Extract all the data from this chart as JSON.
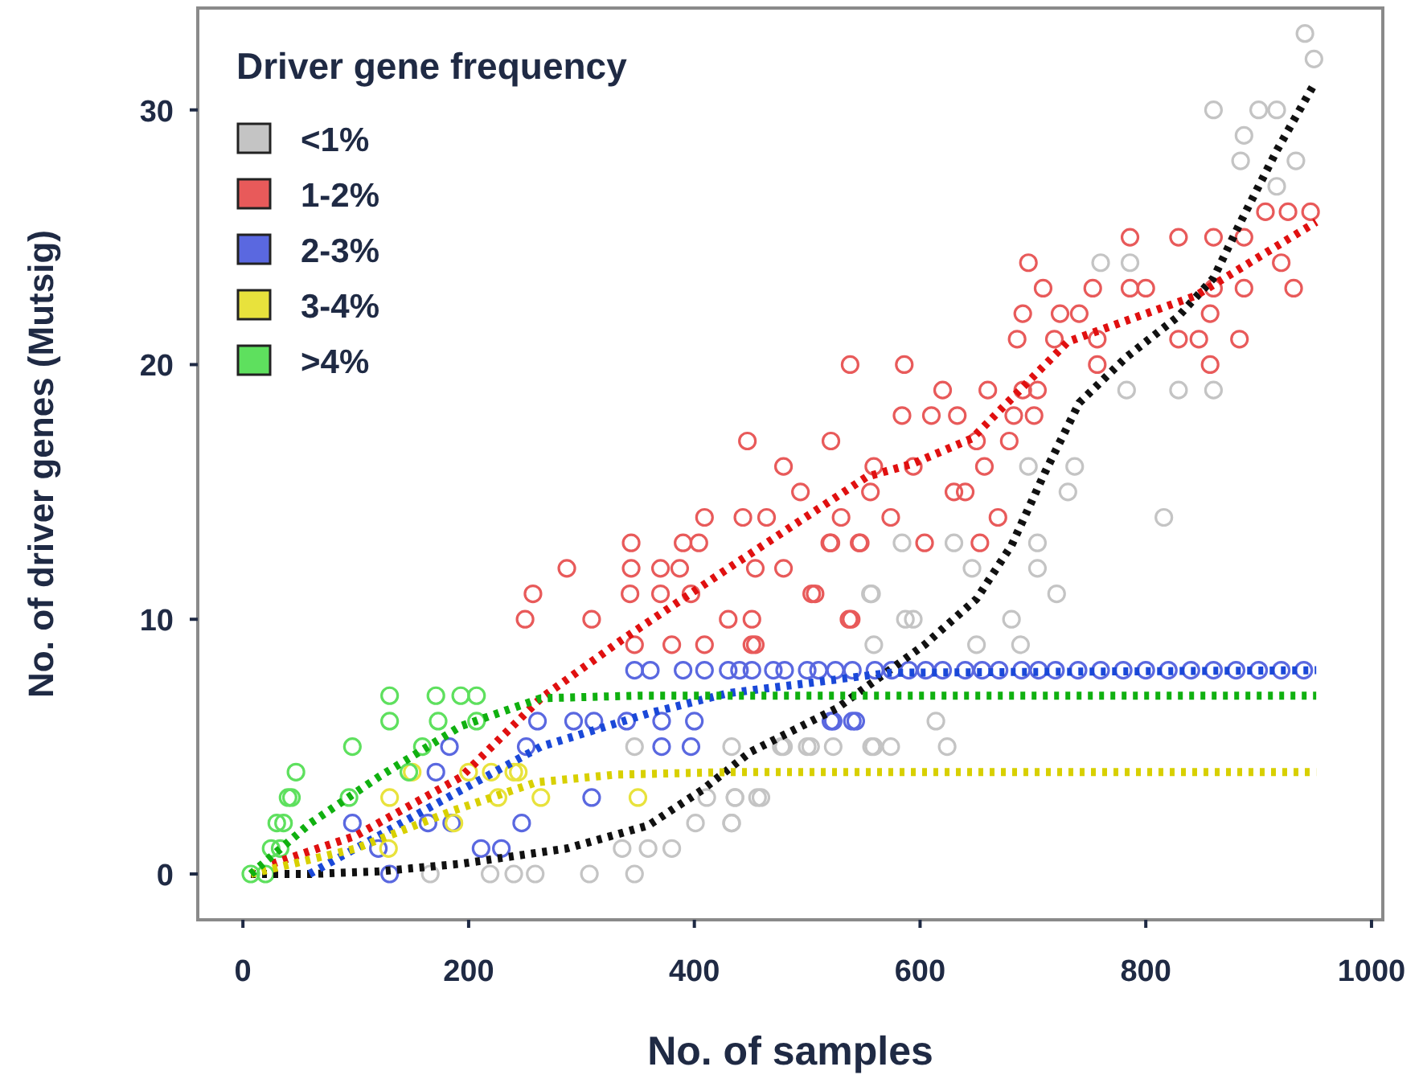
{
  "chart_data": {
    "type": "scatter",
    "xlabel": "No. of samples",
    "ylabel": "No. of driver genes (Mutsig)",
    "legend_title": "Driver gene frequency",
    "legend": "top left",
    "marker": "circle",
    "line_style": "dotted",
    "xlim": [
      -40,
      1010
    ],
    "ylim": [
      -1.8,
      34
    ],
    "xticks": [
      0,
      200,
      400,
      600,
      800,
      1000
    ],
    "yticks": [
      0,
      10,
      20,
      30
    ],
    "series": [
      {
        "name": "<1%",
        "color": "#c4c4c4",
        "x": [
          941,
          949,
          860,
          900,
          916,
          887,
          884,
          933,
          916,
          760,
          786,
          783,
          829,
          860,
          816,
          696,
          737,
          731,
          704,
          584,
          630,
          646,
          704,
          556,
          721,
          594,
          681,
          559,
          650,
          689,
          614,
          477,
          503,
          523,
          559,
          574,
          624,
          436,
          456,
          433,
          347,
          433,
          479,
          500,
          557,
          401,
          433,
          411,
          436,
          459,
          336,
          359,
          380,
          307,
          347,
          166,
          219,
          240,
          259,
          587,
          557
        ],
        "values": [
          33,
          32,
          30,
          30,
          30,
          29,
          28,
          28,
          27,
          24,
          24,
          19,
          19,
          19,
          14,
          16,
          16,
          15,
          13,
          13,
          13,
          12,
          12,
          11,
          11,
          10,
          10,
          9,
          9,
          9,
          6,
          5,
          5,
          5,
          5,
          5,
          5,
          3,
          3,
          2,
          5,
          5,
          5,
          5,
          5,
          2,
          2,
          3,
          3,
          3,
          1,
          1,
          1,
          0,
          0,
          0,
          0,
          0,
          0,
          10,
          11
        ]
      },
      {
        "name": "1-2%",
        "color": "#e85a5a",
        "x": [
          447,
          521,
          479,
          494,
          409,
          443,
          464,
          344,
          390,
          404,
          521,
          547,
          287,
          344,
          370,
          387,
          454,
          479,
          257,
          343,
          370,
          397,
          507,
          250,
          309,
          430,
          451,
          537,
          347,
          380,
          409,
          451,
          538,
          586,
          620,
          660,
          691,
          704,
          584,
          610,
          633,
          683,
          701,
          650,
          679,
          559,
          594,
          657,
          556,
          630,
          640,
          530,
          574,
          669,
          520,
          546,
          604,
          653,
          504,
          539,
          454,
          696,
          709,
          753,
          786,
          786,
          800,
          829,
          860,
          887,
          691,
          724,
          741,
          686,
          719,
          757,
          829,
          847,
          883,
          757,
          857,
          857,
          860,
          887,
          931,
          920,
          906,
          926,
          946
        ],
        "values": [
          17,
          17,
          16,
          15,
          14,
          14,
          14,
          13,
          13,
          13,
          13,
          13,
          12,
          12,
          12,
          12,
          12,
          12,
          11,
          11,
          11,
          11,
          11,
          10,
          10,
          10,
          10,
          10,
          9,
          9,
          9,
          9,
          20,
          20,
          19,
          19,
          19,
          19,
          18,
          18,
          18,
          18,
          18,
          17,
          17,
          16,
          16,
          16,
          15,
          15,
          15,
          14,
          14,
          14,
          13,
          13,
          13,
          13,
          11,
          10,
          9,
          24,
          23,
          23,
          25,
          23,
          23,
          25,
          25,
          25,
          22,
          22,
          22,
          21,
          21,
          21,
          21,
          21,
          21,
          20,
          20,
          22,
          23,
          23,
          23,
          24,
          26,
          26,
          26
        ]
      },
      {
        "name": "2-3%",
        "color": "#5a68e0",
        "x": [
          347,
          361,
          390,
          409,
          430,
          440,
          451,
          470,
          480,
          500,
          510,
          525,
          540,
          560,
          575,
          590,
          605,
          620,
          640,
          655,
          670,
          690,
          705,
          720,
          740,
          760,
          780,
          800,
          820,
          840,
          860,
          880,
          900,
          920,
          940,
          183,
          261,
          251,
          185,
          97,
          164,
          120,
          211,
          229,
          247,
          309,
          371,
          371,
          397,
          400,
          293,
          311,
          340,
          521,
          543,
          523,
          540,
          171,
          130
        ],
        "values": [
          8,
          8,
          8,
          8,
          8,
          8,
          8,
          8,
          8,
          8,
          8,
          8,
          8,
          8,
          8,
          8,
          8,
          8,
          8,
          8,
          8,
          8,
          8,
          8,
          8,
          8,
          8,
          8,
          8,
          8,
          8,
          8,
          8,
          8,
          8,
          5,
          6,
          5,
          2,
          2,
          2,
          1,
          1,
          1,
          2,
          3,
          6,
          5,
          5,
          6,
          6,
          6,
          6,
          6,
          6,
          6,
          6,
          4,
          0
        ]
      },
      {
        "name": "3-4%",
        "color": "#e8e23c",
        "x": [
          130,
          264,
          226,
          350,
          187,
          129,
          150,
          244,
          200,
          220,
          240
        ],
        "values": [
          3,
          3,
          3,
          3,
          2,
          1,
          4,
          4,
          4,
          4,
          4
        ]
      },
      {
        "name": ">4%",
        "color": "#5ee05e",
        "x": [
          47,
          43,
          36,
          33,
          7,
          130,
          171,
          193,
          207,
          130,
          173,
          207,
          97,
          159,
          94,
          147,
          20,
          25,
          30,
          40
        ],
        "values": [
          4,
          3,
          2,
          1,
          0,
          7,
          7,
          7,
          7,
          6,
          6,
          6,
          5,
          5,
          3,
          4,
          0,
          1,
          2,
          3
        ]
      },
      {
        "type": "line",
        "marker": "none",
        "color": "#111111",
        "x": [
          7,
          60,
          120,
          193,
          287,
          359,
          407,
          450,
          526,
          604,
          650,
          681,
          711,
          741,
          783,
          829,
          860,
          884,
          916,
          949
        ],
        "values": [
          0,
          0,
          0.1,
          0.4,
          1,
          1.9,
          3.3,
          4.8,
          6.5,
          9,
          10.8,
          12.9,
          15.8,
          18.5,
          20.3,
          21.9,
          23.4,
          25.6,
          28.4,
          31
        ]
      },
      {
        "type": "line",
        "marker": "none",
        "color": "#e01010",
        "x": [
          26,
          100,
          193,
          264,
          336,
          430,
          553,
          593,
          646,
          731,
          844,
          951
        ],
        "values": [
          0.4,
          1.5,
          3.8,
          6.9,
          9.2,
          12,
          15.6,
          16.1,
          17.1,
          20.9,
          22.7,
          25.6
        ]
      },
      {
        "type": "line",
        "marker": "none",
        "color": "#1a48d8",
        "x": [
          59,
          169,
          264,
          359,
          430,
          573,
          951
        ],
        "values": [
          0,
          2.7,
          5,
          6.3,
          7.1,
          7.9,
          8
        ]
      },
      {
        "type": "line",
        "marker": "none",
        "color": "#d8d000",
        "x": [
          7,
          100,
          187,
          260,
          330,
          430,
          951
        ],
        "values": [
          0,
          1,
          2.5,
          3.6,
          3.9,
          4,
          4
        ]
      },
      {
        "type": "line",
        "marker": "none",
        "color": "#10b010",
        "x": [
          7,
          60,
          120,
          193,
          264,
          350,
          951
        ],
        "values": [
          0,
          2,
          3.8,
          5.8,
          6.9,
          7,
          7
        ]
      }
    ]
  }
}
